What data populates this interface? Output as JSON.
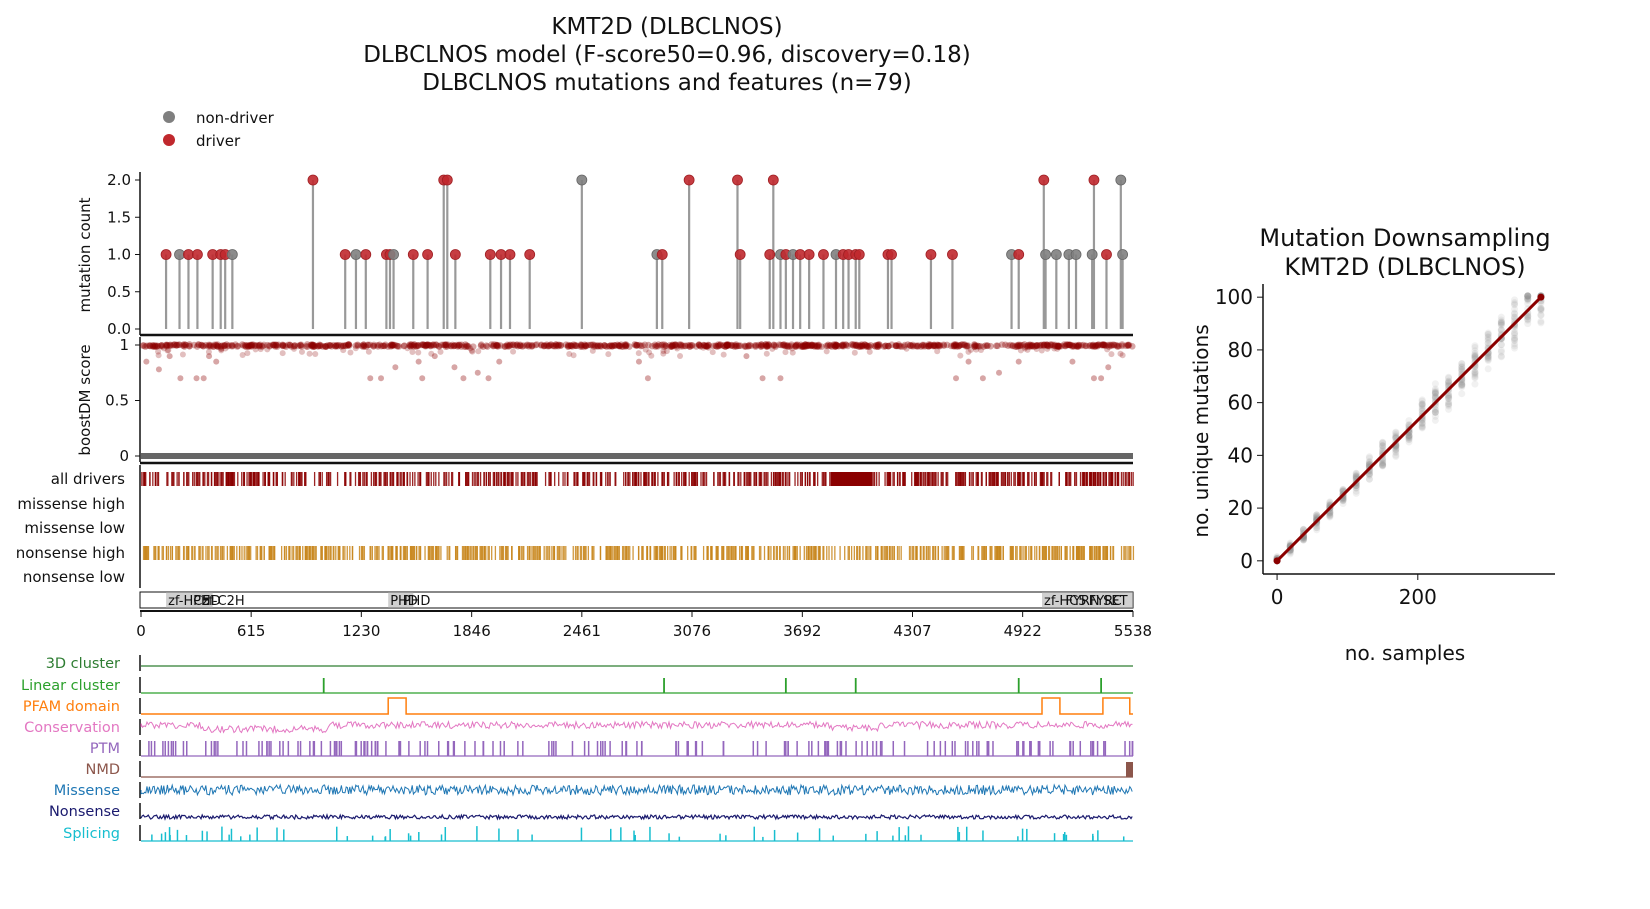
{
  "title_lines": [
    "KMT2D (DLBCLNOS)",
    "DLBCLNOS model (F-score50=0.96, discovery=0.18)",
    "DLBCLNOS mutations and features (n=79)"
  ],
  "legend": [
    {
      "label": "non-driver",
      "color": "#7f7f7f"
    },
    {
      "label": "driver",
      "color": "#c0282d"
    }
  ],
  "colors": {
    "driver": "#c0282d",
    "nondriver": "#7f7f7f",
    "boost": "#8b0000",
    "nonsense_band": "#c8861c",
    "all_drivers_band": "#8b0000",
    "gray_base": "#666666",
    "domain_box": "#aaaaaa",
    "trend": "#8b0000"
  },
  "chart_data": [
    {
      "type": "lollipop",
      "title": "KMT2D (DLBCLNOS)",
      "ylabel": "mutation count",
      "ylim": [
        0,
        2
      ],
      "yticks": [
        "0.0",
        "0.5",
        "1.0",
        "1.5",
        "2.0"
      ],
      "ytick_values": [
        0,
        0.5,
        1.0,
        1.5,
        2.0
      ],
      "xlim": [
        0,
        5538
      ],
      "mutations": [
        {
          "pos": 140,
          "count": 1,
          "driver": true
        },
        {
          "pos": 215,
          "count": 1,
          "driver": false
        },
        {
          "pos": 265,
          "count": 1,
          "driver": true
        },
        {
          "pos": 315,
          "count": 1,
          "driver": true
        },
        {
          "pos": 400,
          "count": 1,
          "driver": true
        },
        {
          "pos": 445,
          "count": 1,
          "driver": true
        },
        {
          "pos": 470,
          "count": 1,
          "driver": true
        },
        {
          "pos": 510,
          "count": 1,
          "driver": false
        },
        {
          "pos": 960,
          "count": 2,
          "driver": true
        },
        {
          "pos": 1140,
          "count": 1,
          "driver": true
        },
        {
          "pos": 1200,
          "count": 1,
          "driver": false
        },
        {
          "pos": 1255,
          "count": 1,
          "driver": true
        },
        {
          "pos": 1370,
          "count": 1,
          "driver": true
        },
        {
          "pos": 1390,
          "count": 1,
          "driver": true
        },
        {
          "pos": 1410,
          "count": 1,
          "driver": false
        },
        {
          "pos": 1520,
          "count": 1,
          "driver": true
        },
        {
          "pos": 1600,
          "count": 1,
          "driver": true
        },
        {
          "pos": 1690,
          "count": 2,
          "driver": true
        },
        {
          "pos": 1710,
          "count": 2,
          "driver": true
        },
        {
          "pos": 1755,
          "count": 1,
          "driver": true
        },
        {
          "pos": 1950,
          "count": 1,
          "driver": true
        },
        {
          "pos": 2010,
          "count": 1,
          "driver": true
        },
        {
          "pos": 2060,
          "count": 1,
          "driver": true
        },
        {
          "pos": 2170,
          "count": 1,
          "driver": true
        },
        {
          "pos": 2461,
          "count": 2,
          "driver": false
        },
        {
          "pos": 2880,
          "count": 1,
          "driver": false
        },
        {
          "pos": 2910,
          "count": 1,
          "driver": true
        },
        {
          "pos": 3060,
          "count": 2,
          "driver": true
        },
        {
          "pos": 3330,
          "count": 2,
          "driver": true
        },
        {
          "pos": 3345,
          "count": 1,
          "driver": true
        },
        {
          "pos": 3530,
          "count": 2,
          "driver": true
        },
        {
          "pos": 3510,
          "count": 1,
          "driver": true
        },
        {
          "pos": 3570,
          "count": 1,
          "driver": false
        },
        {
          "pos": 3600,
          "count": 1,
          "driver": true
        },
        {
          "pos": 3640,
          "count": 1,
          "driver": false
        },
        {
          "pos": 3680,
          "count": 1,
          "driver": true
        },
        {
          "pos": 3730,
          "count": 1,
          "driver": true
        },
        {
          "pos": 3810,
          "count": 1,
          "driver": true
        },
        {
          "pos": 3880,
          "count": 1,
          "driver": false
        },
        {
          "pos": 3920,
          "count": 1,
          "driver": true
        },
        {
          "pos": 3950,
          "count": 1,
          "driver": true
        },
        {
          "pos": 3990,
          "count": 1,
          "driver": true
        },
        {
          "pos": 4010,
          "count": 1,
          "driver": true
        },
        {
          "pos": 4170,
          "count": 1,
          "driver": true
        },
        {
          "pos": 4190,
          "count": 1,
          "driver": true
        },
        {
          "pos": 4410,
          "count": 1,
          "driver": true
        },
        {
          "pos": 4530,
          "count": 1,
          "driver": true
        },
        {
          "pos": 4860,
          "count": 1,
          "driver": false
        },
        {
          "pos": 4900,
          "count": 1,
          "driver": true
        },
        {
          "pos": 5040,
          "count": 2,
          "driver": true
        },
        {
          "pos": 5050,
          "count": 1,
          "driver": false
        },
        {
          "pos": 5110,
          "count": 1,
          "driver": false
        },
        {
          "pos": 5180,
          "count": 1,
          "driver": false
        },
        {
          "pos": 5220,
          "count": 1,
          "driver": false
        },
        {
          "pos": 5310,
          "count": 1,
          "driver": false
        },
        {
          "pos": 5320,
          "count": 2,
          "driver": true
        },
        {
          "pos": 5390,
          "count": 1,
          "driver": true
        },
        {
          "pos": 5470,
          "count": 2,
          "driver": false
        },
        {
          "pos": 5480,
          "count": 1,
          "driver": false
        }
      ]
    },
    {
      "type": "scatter",
      "ylabel": "boostDM score",
      "ylim": [
        0,
        1
      ],
      "yticks": [
        "0",
        "0.5",
        "1"
      ],
      "ytick_values": [
        0,
        0.5,
        1
      ],
      "xlim": [
        0,
        5538
      ],
      "description": "boostDM score per position; most near 1, scattered lower values",
      "low_points": [
        {
          "pos": 30,
          "score": 0.85
        },
        {
          "pos": 100,
          "score": 0.78
        },
        {
          "pos": 160,
          "score": 0.9
        },
        {
          "pos": 220,
          "score": 0.7
        },
        {
          "pos": 310,
          "score": 0.7
        },
        {
          "pos": 350,
          "score": 0.7
        },
        {
          "pos": 380,
          "score": 0.9
        },
        {
          "pos": 420,
          "score": 0.85
        },
        {
          "pos": 1280,
          "score": 0.7
        },
        {
          "pos": 1340,
          "score": 0.7
        },
        {
          "pos": 1420,
          "score": 0.8
        },
        {
          "pos": 1550,
          "score": 0.85
        },
        {
          "pos": 1570,
          "score": 0.7
        },
        {
          "pos": 1640,
          "score": 0.9
        },
        {
          "pos": 1750,
          "score": 0.8
        },
        {
          "pos": 1800,
          "score": 0.7
        },
        {
          "pos": 1880,
          "score": 0.75
        },
        {
          "pos": 1940,
          "score": 0.7
        },
        {
          "pos": 2000,
          "score": 0.85
        },
        {
          "pos": 2780,
          "score": 0.85
        },
        {
          "pos": 2830,
          "score": 0.7
        },
        {
          "pos": 3380,
          "score": 0.9
        },
        {
          "pos": 3470,
          "score": 0.7
        },
        {
          "pos": 3570,
          "score": 0.7
        },
        {
          "pos": 4550,
          "score": 0.7
        },
        {
          "pos": 4620,
          "score": 0.85
        },
        {
          "pos": 4700,
          "score": 0.7
        },
        {
          "pos": 4790,
          "score": 0.75
        },
        {
          "pos": 4900,
          "score": 0.85
        },
        {
          "pos": 5200,
          "score": 0.85
        },
        {
          "pos": 5320,
          "score": 0.7
        },
        {
          "pos": 5360,
          "score": 0.7
        },
        {
          "pos": 5400,
          "score": 0.8
        }
      ]
    },
    {
      "type": "track",
      "rows": [
        "all drivers",
        "missense high",
        "missense low",
        "nonsense high",
        "nonsense low"
      ]
    },
    {
      "type": "domains",
      "domains": [
        {
          "label": "zf-HC5",
          "start": 140,
          "end": 280
        },
        {
          "label": "PHD",
          "start": 280,
          "end": 330
        },
        {
          "label": "zf-C2H",
          "start": 330,
          "end": 400
        },
        {
          "label": "PHD",
          "start": 1380,
          "end": 1450
        },
        {
          "label": "PHD",
          "start": 1450,
          "end": 1520
        },
        {
          "label": "zf-HC5",
          "start": 5030,
          "end": 5150
        },
        {
          "label": "FYRN",
          "start": 5150,
          "end": 5280
        },
        {
          "label": "FYRC",
          "start": 5280,
          "end": 5360
        },
        {
          "label": "SET",
          "start": 5360,
          "end": 5538
        }
      ],
      "xticks": [
        "0",
        "615",
        "1230",
        "1846",
        "2461",
        "3076",
        "3692",
        "4307",
        "4922",
        "5538"
      ],
      "xtick_values": [
        0,
        615,
        1230,
        1846,
        2461,
        3076,
        3692,
        4307,
        4922,
        5538
      ]
    },
    {
      "type": "feature_tracks",
      "tracks": [
        {
          "label": "3D cluster",
          "color": "#2e7d32"
        },
        {
          "label": "Linear cluster",
          "color": "#2ca02c"
        },
        {
          "label": "PFAM domain",
          "color": "#ff7f0e"
        },
        {
          "label": "Conservation",
          "color": "#e377c2"
        },
        {
          "label": "PTM",
          "color": "#9467bd"
        },
        {
          "label": "NMD",
          "color": "#8c564b"
        },
        {
          "label": "Missense",
          "color": "#1f77b4"
        },
        {
          "label": "Nonsense",
          "color": "#1a1a6e"
        },
        {
          "label": "Splicing",
          "color": "#17becf"
        }
      ],
      "linear_cluster_positions": [
        1020,
        2920,
        3600,
        3990,
        4900,
        5360
      ],
      "pfam_positions": [
        [
          1380,
          1480
        ],
        [
          5030,
          5130
        ],
        [
          5370,
          5520
        ]
      ]
    },
    {
      "type": "scatter",
      "title": "Mutation Downsampling",
      "subtitle": "KMT2D (DLBCLNOS)",
      "xlabel": "no. samples",
      "ylabel": "no. unique mutations",
      "xlim": [
        -20,
        395
      ],
      "ylim": [
        -5,
        105
      ],
      "xticks": [
        "0",
        "200"
      ],
      "xtick_values": [
        0,
        200
      ],
      "yticks": [
        "0",
        "20",
        "40",
        "60",
        "80",
        "100"
      ],
      "ytick_values": [
        0,
        20,
        40,
        60,
        80,
        100
      ],
      "trend": {
        "x": [
          0,
          375
        ],
        "y": [
          0,
          100
        ]
      }
    }
  ]
}
